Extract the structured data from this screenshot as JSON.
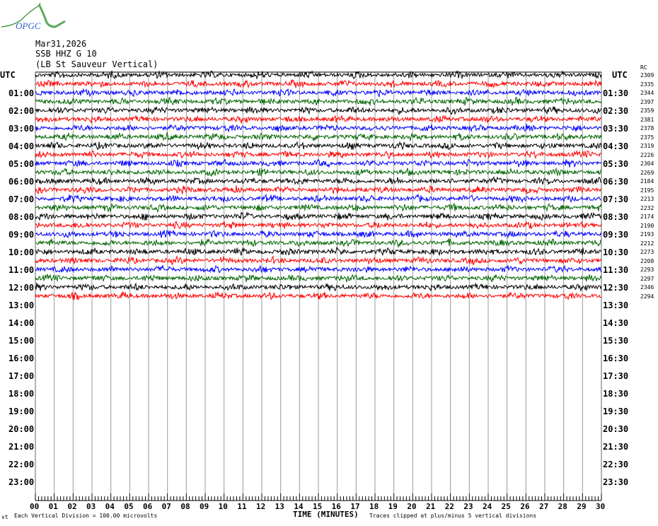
{
  "header": {
    "date": "Mar31,2026",
    "station": "SSB HHZ G 10",
    "location": "(LB St Sauveur Vertical)",
    "logo_text": "OPGC"
  },
  "left_axis": {
    "title": "UTC",
    "labels": [
      "01:00",
      "02:00",
      "03:00",
      "04:00",
      "05:00",
      "06:00",
      "07:00",
      "08:00",
      "09:00",
      "10:00",
      "11:00",
      "12:00",
      "13:00",
      "14:00",
      "15:00",
      "16:00",
      "17:00",
      "18:00",
      "19:00",
      "20:00",
      "21:00",
      "22:00",
      "23:00"
    ]
  },
  "right_axis": {
    "title": "UTC",
    "labels": [
      "01:30",
      "02:30",
      "03:30",
      "04:30",
      "05:30",
      "06:30",
      "07:30",
      "08:30",
      "09:30",
      "10:30",
      "11:30",
      "12:30",
      "13:30",
      "14:30",
      "15:30",
      "16:30",
      "17:30",
      "18:30",
      "19:30",
      "20:30",
      "21:30",
      "22:30",
      "23:30"
    ]
  },
  "trace_values_header": "RC",
  "trace_values": [
    "2309",
    "2335",
    "2344",
    "2397",
    "2359",
    "2381",
    "2378",
    "2375",
    "2319",
    "2226",
    "2304",
    "2269",
    "2184",
    "2195",
    "2213",
    "2232",
    "2174",
    "2190",
    "2193",
    "2212",
    "2273",
    "2208",
    "2293",
    "2297",
    "2346",
    "2294"
  ],
  "footer": {
    "corner": "vt",
    "scale": "Each Vertical Division =  100.00 microvolts",
    "xlabel": "TIME (MINUTES)",
    "clip_note": "Traces clipped at plus/minus 5 vertical divisions"
  },
  "chart_data": {
    "type": "line",
    "xlabel": "TIME (MINUTES)",
    "xlim": [
      0,
      30
    ],
    "x_ticks": [
      "00",
      "01",
      "02",
      "03",
      "04",
      "05",
      "06",
      "07",
      "08",
      "09",
      "10",
      "11",
      "12",
      "13",
      "14",
      "15",
      "16",
      "17",
      "18",
      "19",
      "20",
      "21",
      "22",
      "23",
      "24",
      "25",
      "26",
      "27",
      "28",
      "29",
      "30"
    ],
    "trace_count": 26,
    "trace_interval_minutes": 30,
    "trace_colors": [
      "#000000",
      "#ff0000",
      "#0000ff",
      "#006400"
    ],
    "grid": true
  }
}
